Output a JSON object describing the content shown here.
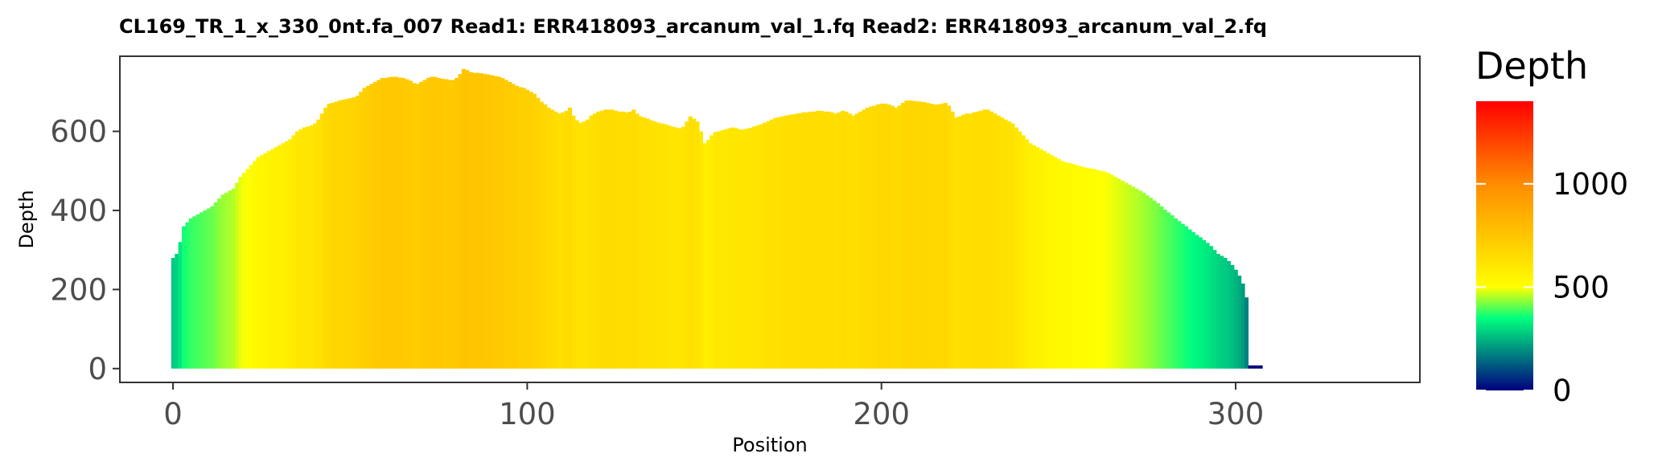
{
  "chart_data": {
    "type": "bar",
    "title": "CL169_TR_1_x_330_0nt.fa_007   Read1: ERR418093_arcanum_val_1.fq   Read2: ERR418093_arcanum_val_2.fq",
    "xlabel": "Position",
    "ylabel": "Depth",
    "xlim": [
      -15,
      352
    ],
    "ylim": [
      -35,
      790
    ],
    "x_ticks": [
      0,
      100,
      200,
      300
    ],
    "y_ticks": [
      0,
      200,
      400,
      600
    ],
    "x_tick_labels": [
      "0",
      "100",
      "200",
      "300"
    ],
    "y_tick_labels": [
      "0",
      "200",
      "400",
      "600"
    ],
    "grid": false,
    "color_scale": {
      "min": 0,
      "max": 1400,
      "stops": [
        {
          "value": 0,
          "color": "#000080"
        },
        {
          "value": 350,
          "color": "#00ff7f"
        },
        {
          "value": 500,
          "color": "#ffff00"
        },
        {
          "value": 1000,
          "color": "#ff8c00"
        },
        {
          "value": 1400,
          "color": "#ff0000"
        }
      ]
    },
    "series": [
      {
        "x_start": 0,
        "values": [
          280,
          290,
          320,
          360,
          370,
          380,
          385,
          390,
          395,
          400,
          405,
          410,
          420,
          430,
          440,
          445,
          450,
          455,
          470,
          485,
          495,
          505,
          515,
          525,
          535,
          540,
          545,
          550,
          555,
          560,
          565,
          570,
          575,
          580,
          590,
          600,
          605,
          610,
          612,
          615,
          620,
          630,
          645,
          660,
          670,
          672,
          675,
          678,
          680,
          682,
          684,
          686,
          690,
          700,
          710,
          715,
          720,
          725,
          730,
          735,
          735,
          737,
          738,
          738,
          736,
          735,
          732,
          728,
          722,
          720,
          725,
          730,
          735,
          738,
          738,
          735,
          733,
          732,
          730,
          730,
          735,
          745,
          758,
          755,
          750,
          748,
          748,
          747,
          745,
          744,
          742,
          740,
          738,
          735,
          730,
          725,
          720,
          715,
          712,
          710,
          705,
          700,
          695,
          685,
          675,
          668,
          660,
          655,
          650,
          645,
          648,
          652,
          660,
          640,
          628,
          622,
          625,
          630,
          640,
          645,
          650,
          652,
          655,
          655,
          655,
          652,
          650,
          650,
          648,
          650,
          655,
          645,
          638,
          635,
          632,
          628,
          625,
          622,
          620,
          618,
          615,
          612,
          610,
          608,
          612,
          625,
          638,
          632,
          625,
          600,
          570,
          578,
          590,
          598,
          600,
          603,
          605,
          608,
          610,
          608,
          605,
          605,
          607,
          609,
          612,
          615,
          618,
          622,
          626,
          630,
          634,
          636,
          638,
          640,
          642,
          643,
          645,
          646,
          648,
          648,
          650,
          650,
          652,
          652,
          650,
          650,
          648,
          645,
          648,
          652,
          650,
          645,
          640,
          645,
          650,
          655,
          660,
          663,
          665,
          668,
          670,
          670,
          668,
          665,
          660,
          665,
          672,
          678,
          678,
          677,
          676,
          675,
          674,
          672,
          670,
          668,
          668,
          670,
          672,
          665,
          650,
          635,
          638,
          642,
          645,
          645,
          648,
          650,
          652,
          655,
          655,
          650,
          645,
          640,
          635,
          630,
          625,
          620,
          610,
          600,
          590,
          580,
          570,
          565,
          560,
          555,
          550,
          545,
          540,
          535,
          530,
          525,
          522,
          520,
          518,
          515,
          512,
          510,
          508,
          506,
          505,
          502,
          500,
          498,
          495,
          490,
          485,
          480,
          475,
          470,
          465,
          460,
          455,
          450,
          445,
          438,
          432,
          425,
          418,
          410,
          402,
          395,
          388,
          380,
          373,
          366,
          360,
          352,
          345,
          338,
          332,
          325,
          318,
          310,
          300,
          290,
          285,
          280,
          272,
          262,
          250,
          235,
          215,
          180,
          8,
          8,
          8,
          8
        ]
      }
    ],
    "legend": {
      "title": "Depth",
      "placement": "right",
      "ticks": [
        0,
        500,
        1000
      ],
      "tick_labels": [
        "0",
        "500",
        "1000"
      ]
    }
  }
}
